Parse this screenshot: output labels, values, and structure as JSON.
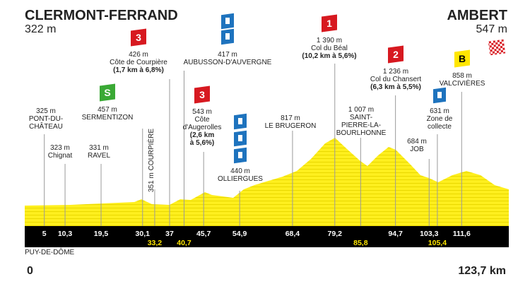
{
  "start": {
    "name": "CLERMONT-FERRAND",
    "altitude": "322 m",
    "km": "0",
    "department": "PUY-DE-DÔME"
  },
  "finish": {
    "name": "AMBERT",
    "altitude": "547 m",
    "km": "123,7 km"
  },
  "waypoints": [
    {
      "km": "5",
      "lines": [
        "325 m",
        "PONT-DU-",
        "CHÂTEAU"
      ]
    },
    {
      "km": "10,3",
      "lines": [
        "323 m",
        "Chignat"
      ]
    },
    {
      "km": "19,5",
      "lines": [
        "331 m",
        "RAVEL"
      ]
    },
    {
      "km": "30,1",
      "badge": "S",
      "lines": [
        "457 m",
        "SERMENTIZON"
      ]
    },
    {
      "km": "33,2",
      "lines": [
        "351 m COURPIÈRE"
      ]
    },
    {
      "km": "37",
      "badge": "3",
      "lines": [
        "426 m",
        "Côte de Courpière",
        "(1,7 km à 6,8%)"
      ]
    },
    {
      "km": "40,7",
      "lines": [
        "417 m",
        "AUBUSSON-D'AUVERGNE"
      ]
    },
    {
      "km": "45,7",
      "badge": "3",
      "lines": [
        "543 m",
        "Côte",
        "d'Augerolles",
        "(2,6 km",
        "à 5,6%)"
      ]
    },
    {
      "km": "54,9",
      "lines": [
        "440 m",
        "OLLIERGUES"
      ]
    },
    {
      "km": "68,4",
      "lines": [
        "817 m",
        "LE BRUGERON"
      ]
    },
    {
      "km": "79,2",
      "badge": "1",
      "lines": [
        "1 390 m",
        "Col du Béal",
        "(10,2 km à 5,6%)"
      ]
    },
    {
      "km": "85,8",
      "lines": [
        "1 007 m",
        "SAINT-",
        "PIERRE-LA-",
        "BOURLHONNE"
      ]
    },
    {
      "km": "94,7",
      "badge": "2",
      "lines": [
        "1 236 m",
        "Col du Chansert",
        "(6,3 km à 5,5%)"
      ]
    },
    {
      "km": "103,3",
      "lines": [
        "684 m",
        "JOB"
      ]
    },
    {
      "km": "105,4",
      "lines": [
        "631 m",
        "Zone de",
        "collecte"
      ]
    },
    {
      "km": "111,6",
      "badge": "B",
      "lines": [
        "858 m",
        "VALCIVIÈRES"
      ]
    }
  ]
}
